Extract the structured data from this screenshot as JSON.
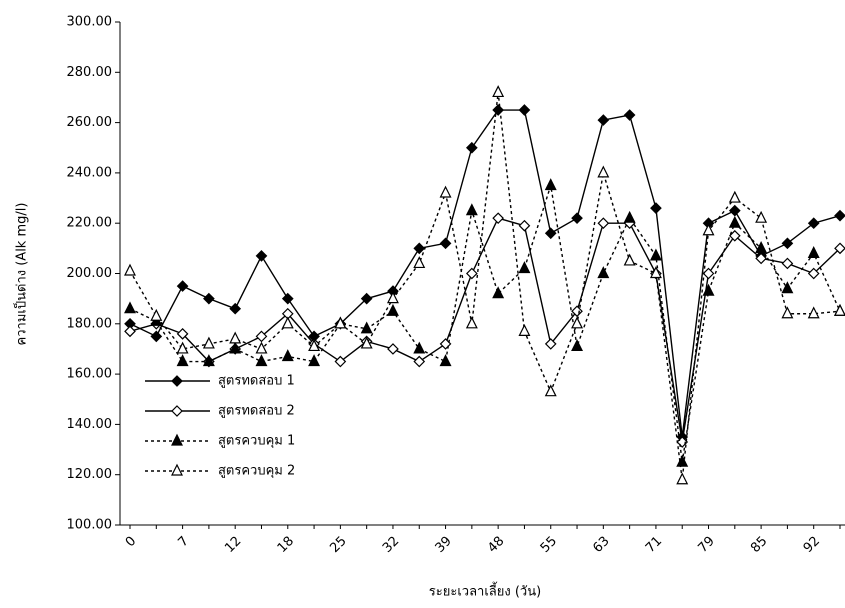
{
  "chart_data": {
    "type": "line",
    "x_label": "ระยะเวลาเลี้ยง (วัน)",
    "y_label": "ความเป็นด่าง (Alk mg/l)",
    "categories": [
      "0",
      null,
      "7",
      null,
      "12",
      null,
      "18",
      null,
      "25",
      null,
      "32",
      null,
      "39",
      null,
      "48",
      null,
      "55",
      null,
      "63",
      null,
      "71",
      null,
      "79",
      null,
      "85",
      null,
      "92",
      null
    ],
    "ylim": [
      100,
      300
    ],
    "yticks": [
      {
        "value": 100,
        "label": "100.00"
      },
      {
        "value": 120,
        "label": "120.00"
      },
      {
        "value": 140,
        "label": "140.00"
      },
      {
        "value": 160,
        "label": "160.00"
      },
      {
        "value": 180,
        "label": "180.00"
      },
      {
        "value": 200,
        "label": "200.00"
      },
      {
        "value": 220,
        "label": "220.00"
      },
      {
        "value": 240,
        "label": "240.00"
      },
      {
        "value": 260,
        "label": "260.00"
      },
      {
        "value": 280,
        "label": "280.00"
      },
      {
        "value": 300,
        "label": "300.00"
      }
    ],
    "legend": "lower left",
    "series": [
      {
        "name": "สูตรทดสอบ 1",
        "color": "#000000",
        "marker": "diamond-filled",
        "dash": "solid",
        "values": [
          180,
          175,
          195,
          190,
          186,
          207,
          190,
          175,
          180,
          190,
          193,
          210,
          212,
          250,
          265,
          265,
          216,
          222,
          261,
          263,
          226,
          135,
          220,
          225,
          207,
          212,
          220,
          223
        ]
      },
      {
        "name": "สูตรทดสอบ 2",
        "color": "#000000",
        "marker": "diamond-open",
        "dash": "solid",
        "values": [
          177,
          180,
          176,
          165,
          170,
          175,
          184,
          172,
          165,
          173,
          170,
          165,
          172,
          200,
          222,
          219,
          172,
          185,
          220,
          220,
          200,
          133,
          200,
          215,
          206,
          204,
          200,
          210
        ]
      },
      {
        "name": "สูตรควบคุม 1",
        "color": "#000000",
        "marker": "triangle-filled",
        "dash": "dashed",
        "values": [
          186,
          181,
          165,
          165,
          170,
          165,
          167,
          165,
          180,
          178,
          185,
          170,
          165,
          225,
          192,
          202,
          235,
          171,
          200,
          222,
          207,
          125,
          193,
          220,
          210,
          194,
          208,
          185
        ]
      },
      {
        "name": "สูตรควบคุม 2",
        "color": "#000000",
        "marker": "triangle-open",
        "dash": "dashed",
        "values": [
          201,
          183,
          170,
          172,
          174,
          170,
          180,
          171,
          180,
          172,
          190,
          204,
          232,
          180,
          272,
          177,
          153,
          180,
          240,
          205,
          200,
          118,
          217,
          230,
          222,
          184,
          184,
          185
        ]
      }
    ]
  }
}
